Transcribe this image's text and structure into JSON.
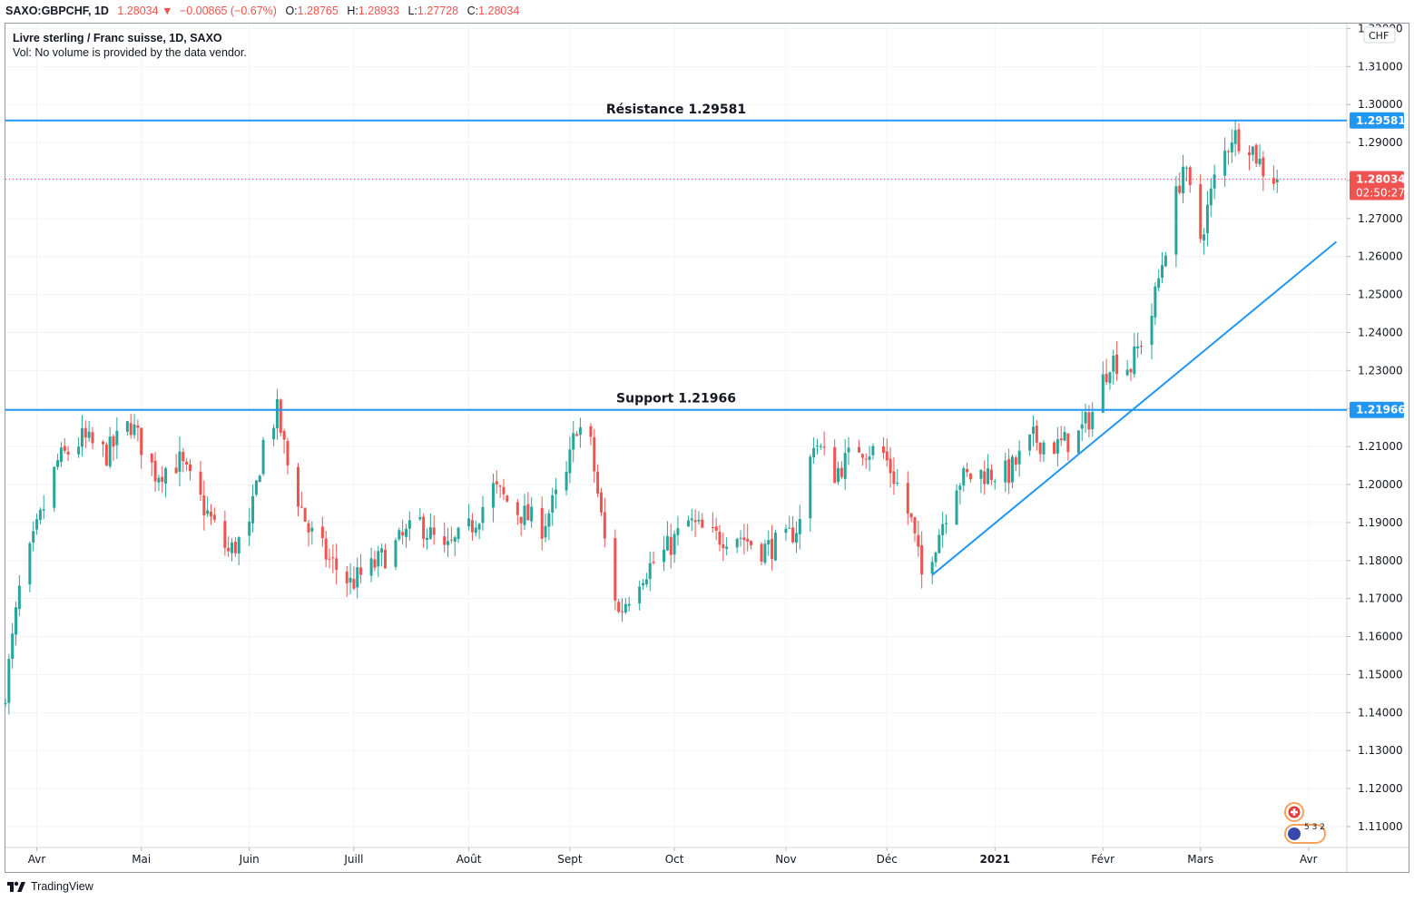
{
  "header": {
    "symbol": "SAXO:GBPCHF, 1D",
    "last": "1.28034",
    "change": "−0.00865 (−0.67%)",
    "o_label": "O:",
    "o_value": "1.28765",
    "h_label": "H:",
    "h_value": "1.28933",
    "l_label": "L:",
    "l_value": "1.27728",
    "c_label": "C:",
    "c_value": "1.28034"
  },
  "legend": {
    "title": "Livre sterling / Franc suisse, 1D, SAXO",
    "volume_note": "Vol: No volume is provided by the data vendor."
  },
  "footer": {
    "brand": "TradingView"
  },
  "chart_data": {
    "type": "candlestick",
    "currency": "CHF",
    "ylim": [
      1.1045,
      1.3213
    ],
    "y_ticks": [
      "1.11000",
      "1.12000",
      "1.13000",
      "1.14000",
      "1.15000",
      "1.16000",
      "1.17000",
      "1.18000",
      "1.19000",
      "1.20000",
      "1.21000",
      "1.22000",
      "1.23000",
      "1.24000",
      "1.25000",
      "1.26000",
      "1.27000",
      "1.28000",
      "1.29000",
      "1.30000",
      "1.31000",
      "1.32000"
    ],
    "x_ticks": [
      {
        "label": "Avr",
        "date": "2020-04-01"
      },
      {
        "label": "Mai",
        "date": "2020-05-01"
      },
      {
        "label": "Juin",
        "date": "2020-06-01"
      },
      {
        "label": "Juill",
        "date": "2020-07-01"
      },
      {
        "label": "Août",
        "date": "2020-08-03"
      },
      {
        "label": "Sept",
        "date": "2020-09-01"
      },
      {
        "label": "Oct",
        "date": "2020-10-01"
      },
      {
        "label": "Nov",
        "date": "2020-11-02"
      },
      {
        "label": "Déc",
        "date": "2020-12-01"
      },
      {
        "label": "2021",
        "date": "2021-01-01"
      },
      {
        "label": "Févr",
        "date": "2021-02-01"
      },
      {
        "label": "Mars",
        "date": "2021-03-01"
      },
      {
        "label": "Avr",
        "date": "2021-04-01"
      }
    ],
    "date_range": [
      "2020-03-23",
      "2021-04-12"
    ],
    "close_series": [
      [
        "2020-03-23",
        1.146
      ],
      [
        "2020-03-27",
        1.172
      ],
      [
        "2020-04-01",
        1.188
      ],
      [
        "2020-04-07",
        1.206
      ],
      [
        "2020-04-14",
        1.212
      ],
      [
        "2020-04-21",
        1.208
      ],
      [
        "2020-04-28",
        1.216
      ],
      [
        "2020-05-05",
        1.203
      ],
      [
        "2020-05-12",
        1.206
      ],
      [
        "2020-05-19",
        1.194
      ],
      [
        "2020-05-26",
        1.182
      ],
      [
        "2020-06-01",
        1.188
      ],
      [
        "2020-06-05",
        1.211
      ],
      [
        "2020-06-09",
        1.219
      ],
      [
        "2020-06-12",
        1.205
      ],
      [
        "2020-06-18",
        1.188
      ],
      [
        "2020-06-24",
        1.18
      ],
      [
        "2020-06-30",
        1.174
      ],
      [
        "2020-07-06",
        1.178
      ],
      [
        "2020-07-13",
        1.184
      ],
      [
        "2020-07-20",
        1.19
      ],
      [
        "2020-07-27",
        1.182
      ],
      [
        "2020-08-03",
        1.188
      ],
      [
        "2020-08-10",
        1.199
      ],
      [
        "2020-08-17",
        1.193
      ],
      [
        "2020-08-24",
        1.189
      ],
      [
        "2020-08-31",
        1.202
      ],
      [
        "2020-09-03",
        1.216
      ],
      [
        "2020-09-07",
        1.21
      ],
      [
        "2020-09-11",
        1.185
      ],
      [
        "2020-09-15",
        1.166
      ],
      [
        "2020-09-21",
        1.176
      ],
      [
        "2020-09-28",
        1.182
      ],
      [
        "2020-10-05",
        1.19
      ],
      [
        "2020-10-12",
        1.186
      ],
      [
        "2020-10-19",
        1.187
      ],
      [
        "2020-10-26",
        1.183
      ],
      [
        "2020-11-02",
        1.185
      ],
      [
        "2020-11-06",
        1.19
      ],
      [
        "2020-11-10",
        1.212
      ],
      [
        "2020-11-16",
        1.203
      ],
      [
        "2020-11-23",
        1.21
      ],
      [
        "2020-11-30",
        1.208
      ],
      [
        "2020-12-04",
        1.2
      ],
      [
        "2020-12-08",
        1.19
      ],
      [
        "2020-12-11",
        1.176
      ],
      [
        "2020-12-15",
        1.185
      ],
      [
        "2020-12-21",
        1.201
      ],
      [
        "2020-12-28",
        1.203
      ],
      [
        "2021-01-05",
        1.203
      ],
      [
        "2021-01-12",
        1.212
      ],
      [
        "2021-01-19",
        1.21
      ],
      [
        "2021-01-25",
        1.213
      ],
      [
        "2021-01-29",
        1.219
      ],
      [
        "2021-02-03",
        1.233
      ],
      [
        "2021-02-09",
        1.231
      ],
      [
        "2021-02-15",
        1.245
      ],
      [
        "2021-02-19",
        1.263
      ],
      [
        "2021-02-24",
        1.284
      ],
      [
        "2021-03-01",
        1.265
      ],
      [
        "2021-03-05",
        1.28
      ],
      [
        "2021-03-10",
        1.292
      ],
      [
        "2021-03-15",
        1.29
      ],
      [
        "2021-03-19",
        1.283
      ],
      [
        "2021-03-23",
        1.28
      ]
    ],
    "horizontal_lines": [
      {
        "label": "Résistance 1.29581",
        "value": 1.29581,
        "axis_label": "1.29581"
      },
      {
        "label": "Support 1.21966",
        "value": 1.21966,
        "axis_label": "1.21966"
      }
    ],
    "trendline": {
      "start": [
        "2020-12-14",
        1.1762
      ],
      "end": [
        "2021-04-09",
        1.2639
      ]
    },
    "last_price": {
      "value": 1.28034,
      "label": "1.28034",
      "countdown": "02:50:27"
    },
    "colors": {
      "up": "#26a69a",
      "down": "#ef5350",
      "line": "#2196f3",
      "text": "#131722",
      "grid": "#f0f3fa"
    }
  },
  "badge": {
    "text": "5 3 2"
  }
}
